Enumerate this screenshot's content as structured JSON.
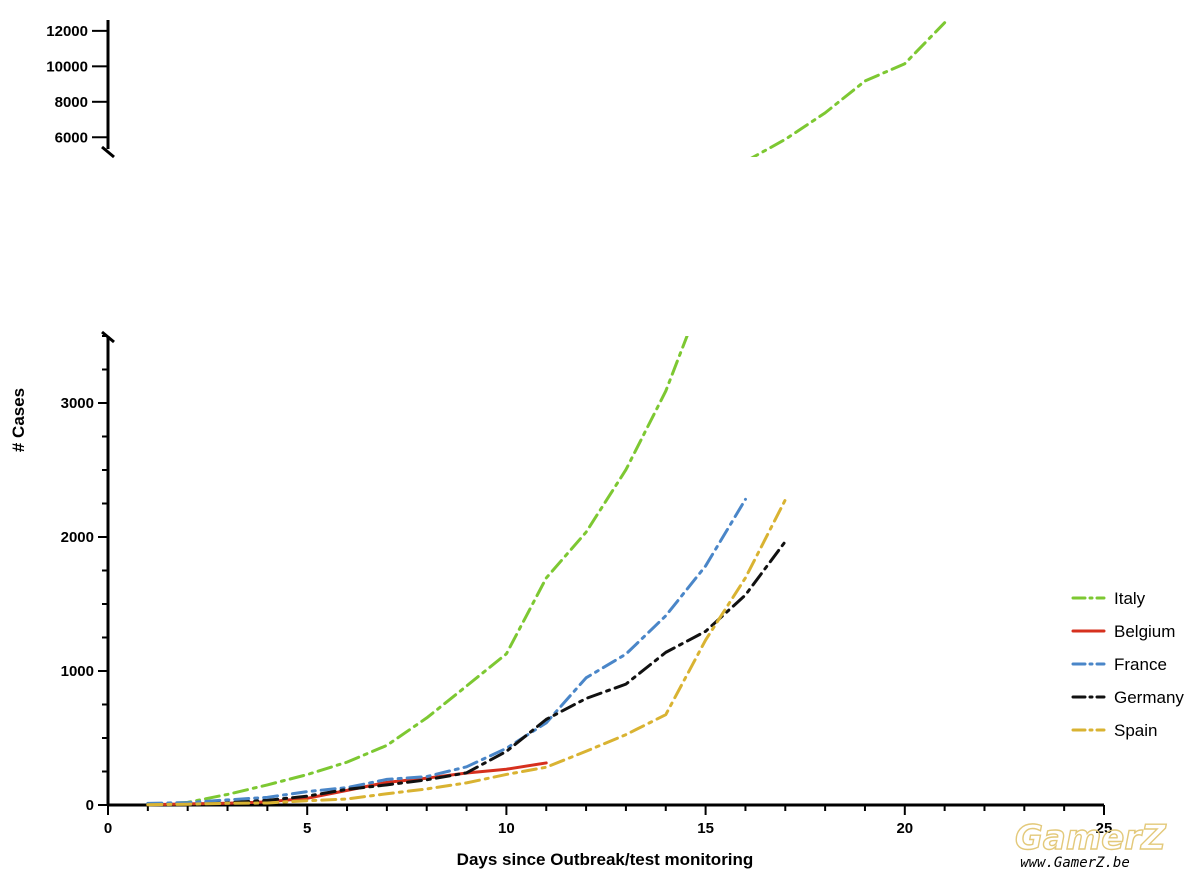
{
  "chart_data": {
    "type": "line",
    "xlabel": "Days since Outbreak/test monitoring",
    "ylabel": "# Cases",
    "xlim": [
      0,
      25
    ],
    "x_ticks": [
      0,
      5,
      10,
      15,
      20,
      25
    ],
    "ylim_lower": [
      0,
      3500
    ],
    "y_ticks_lower": [
      0,
      1000,
      2000,
      3000
    ],
    "ylim_upper": [
      5000,
      12500
    ],
    "y_ticks_upper": [
      6000,
      8000,
      10000,
      12000
    ],
    "axis_break": true,
    "grid": false,
    "legend_position": "right",
    "series": [
      {
        "name": "Italy",
        "color": "#7dc832",
        "dash": "14 6 3 6",
        "points": [
          [
            1,
            3
          ],
          [
            2,
            20
          ],
          [
            3,
            79
          ],
          [
            4,
            150
          ],
          [
            5,
            227
          ],
          [
            6,
            320
          ],
          [
            7,
            445
          ],
          [
            8,
            650
          ],
          [
            9,
            888
          ],
          [
            10,
            1128
          ],
          [
            11,
            1694
          ],
          [
            12,
            2036
          ],
          [
            13,
            2502
          ],
          [
            14,
            3089
          ],
          [
            15,
            3858
          ],
          [
            16,
            4636
          ],
          [
            17,
            5883
          ],
          [
            18,
            7375
          ],
          [
            19,
            9172
          ],
          [
            20,
            10149
          ],
          [
            21,
            12462
          ]
        ]
      },
      {
        "name": "Belgium",
        "color": "#d6301e",
        "dash": "",
        "points": [
          [
            1,
            2
          ],
          [
            2,
            8
          ],
          [
            3,
            13
          ],
          [
            4,
            23
          ],
          [
            5,
            50
          ],
          [
            6,
            109
          ],
          [
            7,
            169
          ],
          [
            8,
            200
          ],
          [
            9,
            239
          ],
          [
            10,
            267
          ],
          [
            11,
            314
          ]
        ]
      },
      {
        "name": "France",
        "color": "#4a86c8",
        "dash": "14 6 3 6",
        "points": [
          [
            1,
            12
          ],
          [
            2,
            18
          ],
          [
            3,
            38
          ],
          [
            4,
            57
          ],
          [
            5,
            100
          ],
          [
            6,
            130
          ],
          [
            7,
            191
          ],
          [
            8,
            212
          ],
          [
            9,
            285
          ],
          [
            10,
            423
          ],
          [
            11,
            613
          ],
          [
            12,
            949
          ],
          [
            13,
            1126
          ],
          [
            14,
            1412
          ],
          [
            15,
            1784
          ],
          [
            16,
            2281
          ]
        ]
      },
      {
        "name": "Germany",
        "color": "#111111",
        "dash": "14 6 3 6",
        "points": [
          [
            1,
            0
          ],
          [
            2,
            1
          ],
          [
            3,
            16
          ],
          [
            4,
            35
          ],
          [
            5,
            66
          ],
          [
            6,
            117
          ],
          [
            7,
            150
          ],
          [
            8,
            188
          ],
          [
            9,
            240
          ],
          [
            10,
            400
          ],
          [
            11,
            639
          ],
          [
            12,
            795
          ],
          [
            13,
            902
          ],
          [
            14,
            1139
          ],
          [
            15,
            1296
          ],
          [
            16,
            1567
          ],
          [
            17,
            1966
          ]
        ]
      },
      {
        "name": "Spain",
        "color": "#d9b332",
        "dash": "14 6 3 6",
        "points": [
          [
            1,
            2
          ],
          [
            2,
            6
          ],
          [
            3,
            13
          ],
          [
            4,
            15
          ],
          [
            5,
            32
          ],
          [
            6,
            45
          ],
          [
            7,
            84
          ],
          [
            8,
            120
          ],
          [
            9,
            165
          ],
          [
            10,
            228
          ],
          [
            11,
            282
          ],
          [
            12,
            401
          ],
          [
            13,
            525
          ],
          [
            14,
            674
          ],
          [
            15,
            1231
          ],
          [
            16,
            1695
          ],
          [
            17,
            2277
          ]
        ]
      }
    ]
  },
  "watermark": {
    "logo_text": "GamerZ",
    "url_text": "www.GamerZ.be"
  }
}
